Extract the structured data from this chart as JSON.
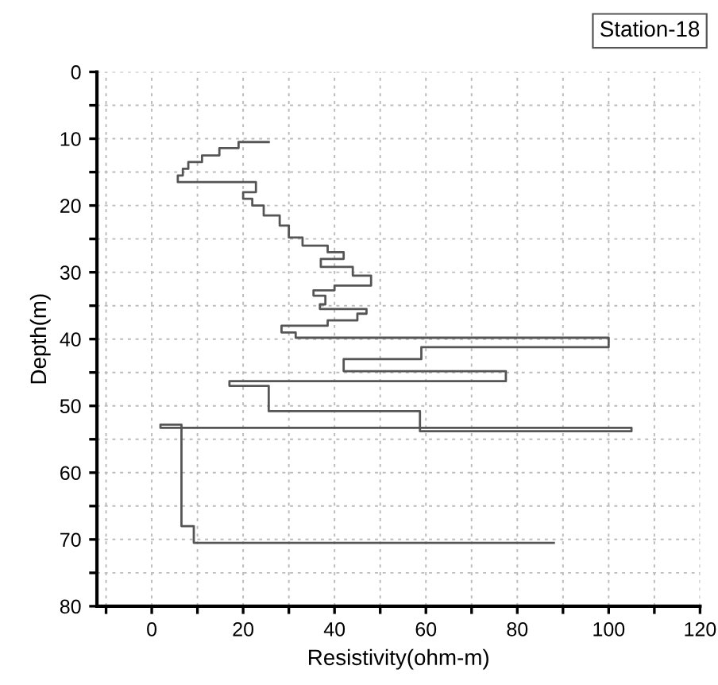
{
  "chart_data": {
    "type": "line",
    "title": "Station-18",
    "xlabel": "Resistivity(ohm-m)",
    "ylabel": "Depth(m)",
    "xlim": [
      -12,
      120
    ],
    "ylim": [
      80,
      0
    ],
    "xticks": [
      {
        "value": -10,
        "label": null
      },
      0,
      {
        "value": 10,
        "label": null
      },
      20,
      {
        "value": 30,
        "label": null
      },
      40,
      {
        "value": 50,
        "label": null
      },
      60,
      {
        "value": 70,
        "label": null
      },
      80,
      {
        "value": 90,
        "label": null
      },
      100,
      {
        "value": 110,
        "label": null
      },
      120
    ],
    "yticks": [
      0,
      {
        "value": 5,
        "label": null
      },
      10,
      {
        "value": 15,
        "label": null
      },
      20,
      {
        "value": 25,
        "label": null
      },
      30,
      {
        "value": 35,
        "label": null
      },
      40,
      {
        "value": 45,
        "label": null
      },
      50,
      {
        "value": 55,
        "label": null
      },
      60,
      {
        "value": 65,
        "label": null
      },
      70,
      {
        "value": 75,
        "label": null
      },
      80
    ],
    "grid": true,
    "marker": "none",
    "line_style": "solid",
    "series": [
      {
        "color": "#555555",
        "x": [
          25.6,
          19,
          19,
          14.8,
          14.8,
          11,
          11,
          8,
          8,
          6.8,
          6.8,
          5.7,
          5.7,
          22.8,
          22.8,
          20,
          20,
          22,
          22,
          24.5,
          24.5,
          28,
          28,
          30,
          30,
          33,
          33,
          38.5,
          38.5,
          42,
          42,
          37,
          37,
          44,
          44,
          48,
          48,
          40,
          40,
          35.4,
          35.4,
          38,
          38,
          36.8,
          36.8,
          47,
          47,
          45,
          45,
          38.5,
          38.5,
          28.4,
          28.4,
          31.5,
          31.5,
          100,
          100,
          59,
          59,
          42,
          42,
          77.5,
          77.5,
          17,
          17,
          25.6,
          25.6,
          58.7,
          58.7,
          105,
          105,
          1.9,
          1.9,
          6.5,
          6.5,
          9.2,
          9.2,
          88
        ],
        "values": [
          10.5,
          10.5,
          11.4,
          11.4,
          12.5,
          12.5,
          13.5,
          13.5,
          14.5,
          14.5,
          15.5,
          15.5,
          16.5,
          16.5,
          18,
          18,
          19,
          19,
          20,
          20,
          21.5,
          21.5,
          23,
          23,
          24.8,
          24.8,
          26,
          26,
          27,
          27,
          28,
          28,
          29.2,
          29.2,
          30.5,
          30.5,
          32,
          32,
          32.7,
          32.7,
          33.5,
          33.5,
          34.8,
          34.8,
          35.5,
          35.5,
          36.2,
          36.2,
          37.2,
          37.2,
          38,
          38,
          39,
          39,
          39.8,
          39.8,
          41.2,
          41.2,
          43,
          43,
          44.8,
          44.8,
          46.3,
          46.3,
          47,
          47,
          50.8,
          50.8,
          53.8,
          53.8,
          53.3,
          53.3,
          52.8,
          52.8,
          68,
          68,
          70.5,
          70.5
        ]
      }
    ]
  }
}
